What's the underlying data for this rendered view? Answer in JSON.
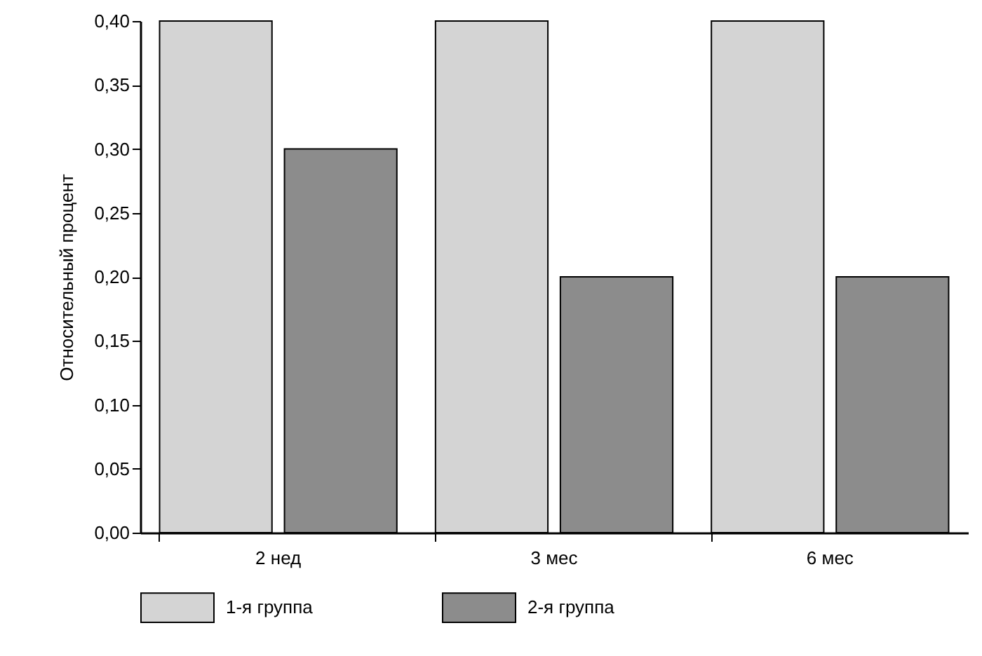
{
  "chart_data": {
    "type": "bar",
    "ylabel": "Относительный процент",
    "categories": [
      "2 нед",
      "3 мес",
      "6 мес"
    ],
    "series": [
      {
        "name": "1-я группа",
        "color": "#d4d4d4",
        "values": [
          0.4,
          0.4,
          0.4
        ]
      },
      {
        "name": "2-я группа",
        "color": "#8c8c8c",
        "values": [
          0.3,
          0.2,
          0.2
        ]
      }
    ],
    "ylim": [
      0,
      0.4
    ],
    "yticks": [
      {
        "value": 0,
        "label": "0,00"
      },
      {
        "value": 0.05,
        "label": "0,05"
      },
      {
        "value": 0.1,
        "label": "0,10"
      },
      {
        "value": 0.15,
        "label": "0,15"
      },
      {
        "value": 0.2,
        "label": "0,20"
      },
      {
        "value": 0.25,
        "label": "0,25"
      },
      {
        "value": 0.3,
        "label": "0,30"
      },
      {
        "value": 0.35,
        "label": "0,35"
      },
      {
        "value": 0.4,
        "label": "0,40"
      }
    ],
    "grid": false,
    "legend": "bottom"
  }
}
